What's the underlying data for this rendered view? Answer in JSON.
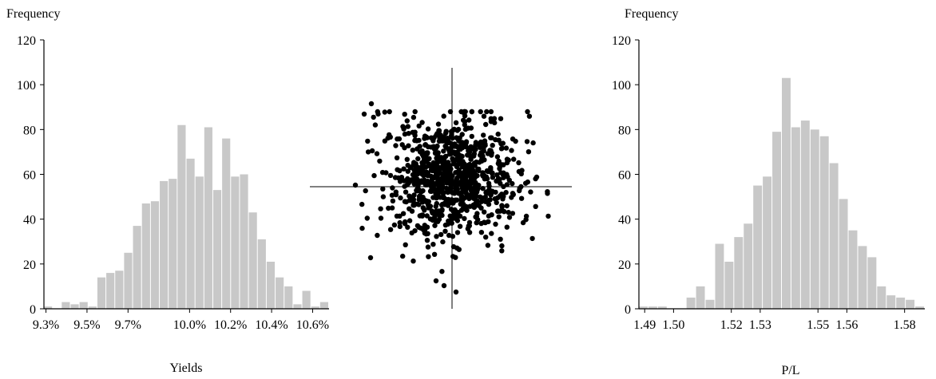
{
  "chart_data": [
    {
      "type": "bar",
      "ylabel": "Frequency",
      "xlabel": "Yields",
      "ylim": [
        0,
        120
      ],
      "yticks": [
        0,
        20,
        40,
        60,
        80,
        100,
        120
      ],
      "xrange": [
        9.29,
        10.68
      ],
      "xticks": [
        9.3,
        9.5,
        9.7,
        10.0,
        10.2,
        10.4,
        10.6
      ],
      "xtick_labels": [
        "9.3%",
        "9.5%",
        "9.7%",
        "10.0%",
        "10.2%",
        "10.4%",
        "10.6%"
      ],
      "bar_color": "#c8c8c8",
      "values": [
        1,
        0,
        3,
        2,
        3,
        1,
        14,
        16,
        17,
        25,
        37,
        47,
        48,
        57,
        58,
        82,
        67,
        59,
        81,
        53,
        76,
        59,
        60,
        43,
        31,
        21,
        14,
        10,
        2,
        8,
        1,
        3
      ]
    },
    {
      "type": "scatter",
      "n_points": 900,
      "point_color": "#000000",
      "axes": "crosshair"
    },
    {
      "type": "bar",
      "ylabel": "Frequency",
      "xlabel": "P/L",
      "ylim": [
        0,
        120
      ],
      "yticks": [
        0,
        20,
        40,
        60,
        80,
        100,
        120
      ],
      "xrange": [
        1.488,
        1.587
      ],
      "xticks": [
        1.49,
        1.5,
        1.52,
        1.53,
        1.55,
        1.56,
        1.58
      ],
      "xtick_labels": [
        "1.49",
        "1.50",
        "1.52",
        "1.53",
        "1.55",
        "1.56",
        "1.58"
      ],
      "bar_color": "#c8c8c8",
      "values": [
        1,
        1,
        1,
        0,
        0,
        5,
        10,
        4,
        29,
        21,
        32,
        38,
        55,
        59,
        79,
        103,
        81,
        84,
        80,
        77,
        65,
        49,
        35,
        28,
        23,
        10,
        6,
        5,
        4,
        1
      ]
    }
  ]
}
